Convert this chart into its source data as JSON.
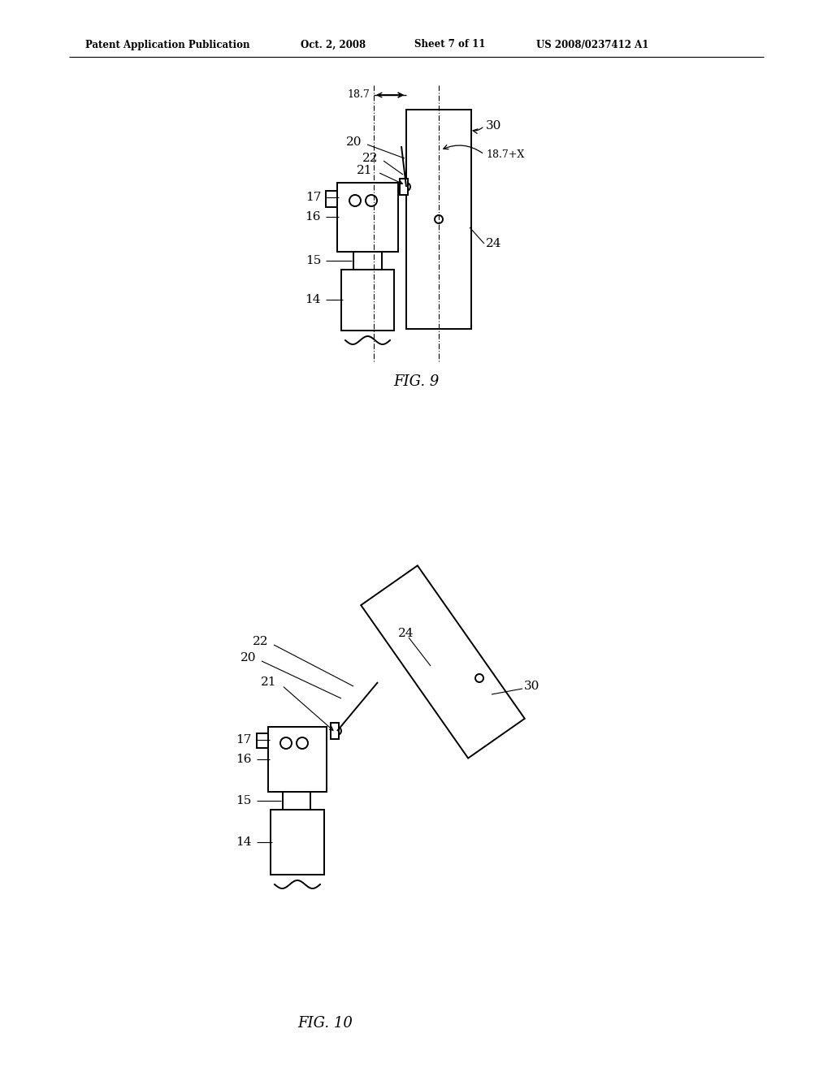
{
  "bg_color": "#ffffff",
  "line_color": "#000000",
  "text_color": "#000000",
  "header_left": "Patent Application Publication",
  "header_mid1": "Oct. 2, 2008",
  "header_mid2": "Sheet 7 of 11",
  "header_right": "US 2008/0237412 A1",
  "fig9_caption": "FIG. 9",
  "fig10_caption": "FIG. 10",
  "lw": 1.4
}
